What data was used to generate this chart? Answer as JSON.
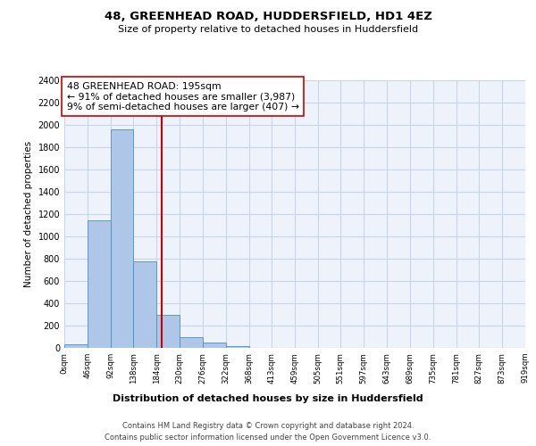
{
  "title": "48, GREENHEAD ROAD, HUDDERSFIELD, HD1 4EZ",
  "subtitle": "Size of property relative to detached houses in Huddersfield",
  "xlabel": "Distribution of detached houses by size in Huddersfield",
  "ylabel": "Number of detached properties",
  "bin_edges": [
    0,
    46,
    92,
    138,
    184,
    230,
    276,
    322,
    368,
    413,
    459,
    505,
    551,
    597,
    643,
    689,
    735,
    781,
    827,
    873,
    919
  ],
  "bar_heights": [
    35,
    1145,
    1960,
    775,
    295,
    100,
    45,
    20,
    0,
    0,
    0,
    0,
    0,
    0,
    0,
    0,
    0,
    0,
    0,
    0
  ],
  "bar_color": "#aec6e8",
  "bar_edgecolor": "#4f8fc0",
  "property_size": 195,
  "vline_color": "#cc0000",
  "annotation_line1": "48 GREENHEAD ROAD: 195sqm",
  "annotation_line2": "← 91% of detached houses are smaller (3,987)",
  "annotation_line3": "9% of semi-detached houses are larger (407) →",
  "annotation_box_edgecolor": "#cc0000",
  "ylim": [
    0,
    2400
  ],
  "yticks": [
    0,
    200,
    400,
    600,
    800,
    1000,
    1200,
    1400,
    1600,
    1800,
    2000,
    2200,
    2400
  ],
  "tick_labels": [
    "0sqm",
    "46sqm",
    "92sqm",
    "138sqm",
    "184sqm",
    "230sqm",
    "276sqm",
    "322sqm",
    "368sqm",
    "413sqm",
    "459sqm",
    "505sqm",
    "551sqm",
    "597sqm",
    "643sqm",
    "689sqm",
    "735sqm",
    "781sqm",
    "827sqm",
    "873sqm",
    "919sqm"
  ],
  "footnote1": "Contains HM Land Registry data © Crown copyright and database right 2024.",
  "footnote2": "Contains public sector information licensed under the Open Government Licence v3.0.",
  "background_color": "#eef2fb",
  "grid_color": "#c8d4e8"
}
